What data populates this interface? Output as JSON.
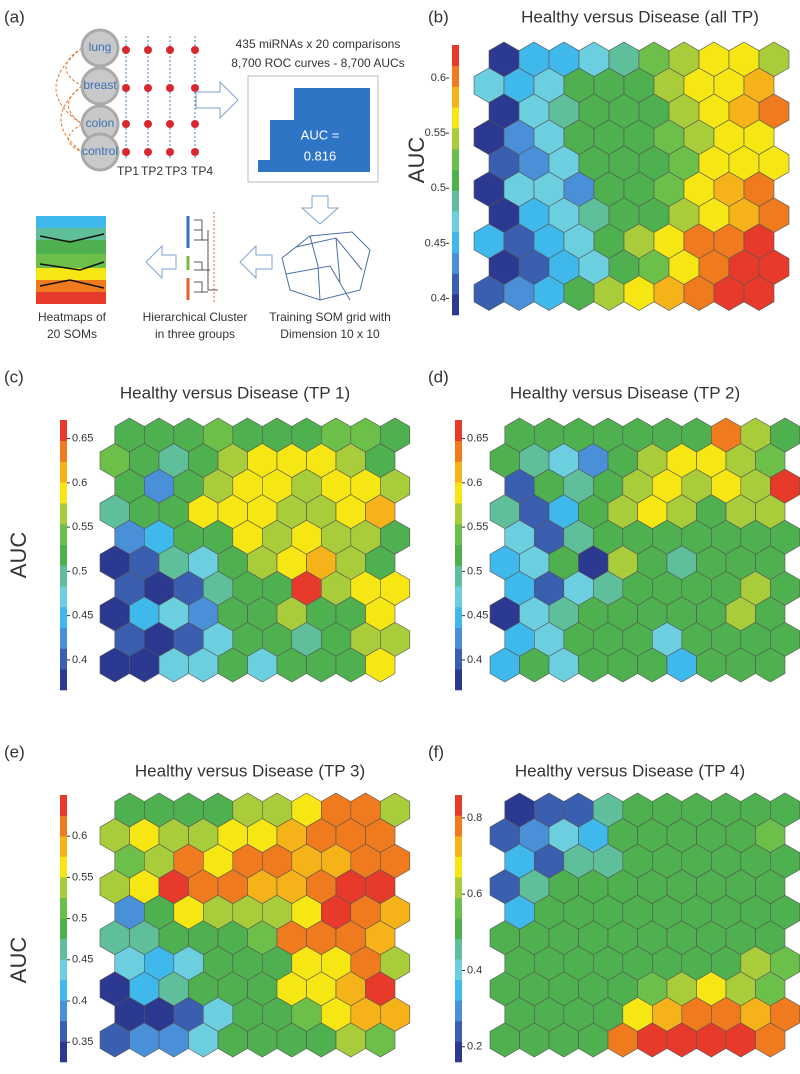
{
  "diagram": {
    "panel": "(a)",
    "organs": [
      "lung",
      "breast",
      "colon",
      "control"
    ],
    "timepoints": [
      "TP1",
      "TP2",
      "TP3",
      "TP4"
    ],
    "roc_text": [
      "435 miRNAs x 20 comparisons",
      "8,700 ROC curves - 8,700 AUCs"
    ],
    "auc_label": "AUC =",
    "auc_value": "0.816",
    "steps": [
      [
        "Heatmaps of",
        "20 SOMs"
      ],
      [
        "Hierarchical Cluster",
        "in three groups"
      ],
      [
        "Training SOM grid with",
        "Dimension 10 x 10"
      ]
    ]
  },
  "colormap": [
    "#2b3990",
    "#3a5fb0",
    "#4a90d9",
    "#3fb8ec",
    "#6ccfe0",
    "#5fbf9a",
    "#4fb04f",
    "#6cc04a",
    "#a8cc3a",
    "#f5e614",
    "#f6b319",
    "#f07a1e",
    "#e83a2a"
  ],
  "chart_data": [
    {
      "type": "heatmap",
      "panel": "(b)",
      "title": "Healthy versus Disease (all TP)",
      "ylabel": "AUC",
      "ylim": [
        0.385,
        0.63
      ],
      "yticks": [
        0.4,
        0.45,
        0.5,
        0.55,
        0.6
      ],
      "values": [
        [
          0.39,
          0.45,
          0.45,
          0.47,
          0.49,
          0.53,
          0.55,
          0.56,
          0.56,
          0.55
        ],
        [
          0.47,
          0.45,
          0.47,
          0.51,
          0.51,
          0.51,
          0.55,
          0.56,
          0.56,
          0.58
        ],
        [
          0.39,
          0.47,
          0.49,
          0.51,
          0.51,
          0.51,
          0.55,
          0.56,
          0.58,
          0.6
        ],
        [
          0.39,
          0.43,
          0.47,
          0.51,
          0.51,
          0.51,
          0.53,
          0.55,
          0.56,
          0.56
        ],
        [
          0.41,
          0.43,
          0.47,
          0.51,
          0.51,
          0.51,
          0.53,
          0.56,
          0.56,
          0.56
        ],
        [
          0.39,
          0.47,
          0.47,
          0.43,
          0.51,
          0.51,
          0.53,
          0.56,
          0.58,
          0.6
        ],
        [
          0.39,
          0.45,
          0.47,
          0.49,
          0.51,
          0.51,
          0.55,
          0.56,
          0.58,
          0.6
        ],
        [
          0.45,
          0.41,
          0.45,
          0.47,
          0.51,
          0.55,
          0.56,
          0.6,
          0.6,
          0.62
        ],
        [
          0.39,
          0.41,
          0.45,
          0.47,
          0.51,
          0.53,
          0.56,
          0.6,
          0.62,
          0.62
        ],
        [
          0.41,
          0.43,
          0.45,
          0.51,
          0.55,
          0.56,
          0.58,
          0.6,
          0.62,
          0.62
        ]
      ]
    },
    {
      "type": "heatmap",
      "panel": "(c)",
      "title": "Healthy versus Disease (TP 1)",
      "ylabel": "AUC",
      "ylim": [
        0.366,
        0.671
      ],
      "yticks": [
        0.4,
        0.45,
        0.5,
        0.55,
        0.6,
        0.65
      ],
      "values": [
        [
          0.52,
          0.52,
          0.52,
          0.54,
          0.52,
          0.52,
          0.52,
          0.54,
          0.54,
          0.52
        ],
        [
          0.54,
          0.52,
          0.5,
          0.52,
          0.57,
          0.59,
          0.59,
          0.59,
          0.57,
          0.52
        ],
        [
          0.52,
          0.42,
          0.52,
          0.57,
          0.59,
          0.59,
          0.57,
          0.59,
          0.59,
          0.57
        ],
        [
          0.5,
          0.52,
          0.52,
          0.59,
          0.59,
          0.59,
          0.57,
          0.57,
          0.59,
          0.61
        ],
        [
          0.42,
          0.45,
          0.52,
          0.52,
          0.59,
          0.57,
          0.59,
          0.57,
          0.57,
          0.52
        ],
        [
          0.38,
          0.4,
          0.5,
          0.47,
          0.52,
          0.57,
          0.59,
          0.61,
          0.57,
          0.52
        ],
        [
          0.4,
          0.38,
          0.4,
          0.5,
          0.52,
          0.52,
          0.66,
          0.57,
          0.59,
          0.59
        ],
        [
          0.38,
          0.45,
          0.47,
          0.42,
          0.52,
          0.52,
          0.57,
          0.52,
          0.52,
          0.59
        ],
        [
          0.4,
          0.38,
          0.4,
          0.47,
          0.52,
          0.52,
          0.5,
          0.52,
          0.57,
          0.57
        ],
        [
          0.38,
          0.38,
          0.47,
          0.47,
          0.52,
          0.47,
          0.52,
          0.52,
          0.52,
          0.59
        ]
      ]
    },
    {
      "type": "heatmap",
      "panel": "(d)",
      "title": "Healthy versus Disease (TP 2)",
      "ylim": [
        0.366,
        0.671
      ],
      "yticks": [
        0.4,
        0.45,
        0.5,
        0.55,
        0.6,
        0.65
      ],
      "values": [
        [
          0.52,
          0.52,
          0.52,
          0.52,
          0.52,
          0.52,
          0.52,
          0.64,
          0.57,
          0.52
        ],
        [
          0.52,
          0.5,
          0.47,
          0.42,
          0.52,
          0.57,
          0.59,
          0.59,
          0.57,
          0.54
        ],
        [
          0.4,
          0.52,
          0.5,
          0.52,
          0.57,
          0.59,
          0.57,
          0.59,
          0.57,
          0.66
        ],
        [
          0.5,
          0.4,
          0.45,
          0.52,
          0.57,
          0.59,
          0.57,
          0.52,
          0.57,
          0.57
        ],
        [
          0.47,
          0.4,
          0.5,
          0.52,
          0.52,
          0.52,
          0.52,
          0.52,
          0.52,
          0.52
        ],
        [
          0.45,
          0.47,
          0.52,
          0.38,
          0.57,
          0.52,
          0.5,
          0.52,
          0.52,
          0.52
        ],
        [
          0.45,
          0.4,
          0.47,
          0.5,
          0.52,
          0.52,
          0.52,
          0.52,
          0.57,
          0.52
        ],
        [
          0.38,
          0.47,
          0.5,
          0.52,
          0.52,
          0.52,
          0.52,
          0.52,
          0.57,
          0.52
        ],
        [
          0.45,
          0.47,
          0.52,
          0.52,
          0.52,
          0.47,
          0.52,
          0.52,
          0.52,
          0.52
        ],
        [
          0.45,
          0.52,
          0.47,
          0.52,
          0.52,
          0.52,
          0.45,
          0.52,
          0.52,
          0.52
        ]
      ]
    },
    {
      "type": "heatmap",
      "panel": "(e)",
      "title": "Healthy versus Disease (TP 3)",
      "ylabel": "AUC",
      "ylim": [
        0.326,
        0.65
      ],
      "yticks": [
        0.35,
        0.4,
        0.45,
        0.5,
        0.55,
        0.6
      ],
      "values": [
        [
          0.49,
          0.49,
          0.49,
          0.49,
          0.54,
          0.54,
          0.56,
          0.61,
          0.61,
          0.54
        ],
        [
          0.54,
          0.56,
          0.54,
          0.54,
          0.56,
          0.56,
          0.59,
          0.61,
          0.61,
          0.61
        ],
        [
          0.51,
          0.54,
          0.61,
          0.56,
          0.61,
          0.61,
          0.59,
          0.59,
          0.61,
          0.61
        ],
        [
          0.54,
          0.56,
          0.64,
          0.61,
          0.61,
          0.59,
          0.59,
          0.61,
          0.64,
          0.64
        ],
        [
          0.39,
          0.49,
          0.56,
          0.54,
          0.54,
          0.54,
          0.56,
          0.64,
          0.61,
          0.59
        ],
        [
          0.46,
          0.46,
          0.49,
          0.49,
          0.49,
          0.51,
          0.61,
          0.61,
          0.61,
          0.59
        ],
        [
          0.44,
          0.41,
          0.44,
          0.49,
          0.49,
          0.49,
          0.56,
          0.56,
          0.61,
          0.54
        ],
        [
          0.34,
          0.41,
          0.46,
          0.49,
          0.49,
          0.49,
          0.56,
          0.56,
          0.59,
          0.64
        ],
        [
          0.34,
          0.34,
          0.36,
          0.44,
          0.49,
          0.49,
          0.51,
          0.56,
          0.59,
          0.59
        ],
        [
          0.36,
          0.39,
          0.39,
          0.44,
          0.49,
          0.49,
          0.49,
          0.49,
          0.54,
          0.51
        ]
      ]
    },
    {
      "type": "heatmap",
      "panel": "(f)",
      "title": "Healthy versus Disease (TP 4)",
      "ylim": [
        0.16,
        0.86
      ],
      "yticks": [
        0.2,
        0.4,
        0.6,
        0.8
      ],
      "values": [
        [
          0.19,
          0.24,
          0.24,
          0.46,
          0.51,
          0.51,
          0.51,
          0.51,
          0.51,
          0.51
        ],
        [
          0.24,
          0.3,
          0.4,
          0.35,
          0.51,
          0.51,
          0.51,
          0.51,
          0.51,
          0.56
        ],
        [
          0.35,
          0.24,
          0.46,
          0.46,
          0.51,
          0.51,
          0.51,
          0.51,
          0.51,
          0.51
        ],
        [
          0.24,
          0.46,
          0.51,
          0.51,
          0.51,
          0.51,
          0.51,
          0.51,
          0.51,
          0.51
        ],
        [
          0.35,
          0.51,
          0.51,
          0.51,
          0.51,
          0.51,
          0.51,
          0.51,
          0.51,
          0.51
        ],
        [
          0.51,
          0.51,
          0.51,
          0.51,
          0.51,
          0.51,
          0.51,
          0.51,
          0.51,
          0.51
        ],
        [
          0.51,
          0.51,
          0.51,
          0.51,
          0.51,
          0.51,
          0.51,
          0.51,
          0.62,
          0.56
        ],
        [
          0.51,
          0.51,
          0.51,
          0.51,
          0.51,
          0.56,
          0.62,
          0.67,
          0.62,
          0.56
        ],
        [
          0.51,
          0.51,
          0.51,
          0.51,
          0.67,
          0.72,
          0.78,
          0.78,
          0.72,
          0.78
        ],
        [
          0.51,
          0.51,
          0.51,
          0.51,
          0.78,
          0.83,
          0.83,
          0.83,
          0.83,
          0.78
        ]
      ]
    }
  ]
}
